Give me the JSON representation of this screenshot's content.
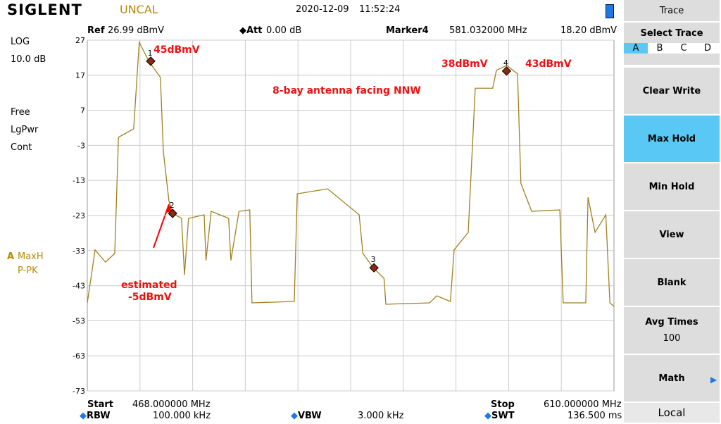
{
  "header": {
    "brand": "SIGLENT",
    "status": "UNCAL",
    "date": "2020-12-09",
    "time": "11:52:24"
  },
  "info": {
    "ref_label": "Ref",
    "ref_value": "26.99 dBmV",
    "att_label": "Att",
    "att_value": "0.00 dB",
    "marker_label": "Marker4",
    "marker_freq": "581.032000 MHz",
    "marker_level": "18.20 dBmV"
  },
  "left_panel": {
    "scale": "LOG",
    "div": "10.0 dB",
    "free": "Free",
    "detector": "LgPwr",
    "sweep": "Cont",
    "trace": "A",
    "trace_mode": "MaxH",
    "trace_det": "P-PK"
  },
  "footer": {
    "start_label": "Start",
    "start_value": "468.000000 MHz",
    "stop_label": "Stop",
    "stop_value": "610.000000 MHz",
    "rbw_label": "RBW",
    "rbw_value": "100.000 kHz",
    "vbw_label": "VBW",
    "vbw_value": "3.000 kHz",
    "swt_label": "SWT",
    "swt_value": "136.500 ms"
  },
  "menu": {
    "title": "Trace",
    "select": "Select Trace",
    "traces": [
      "A",
      "B",
      "C",
      "D"
    ],
    "buttons": [
      "Clear Write",
      "Max Hold",
      "Min Hold",
      "View",
      "Blank"
    ],
    "avg_label": "Avg Times",
    "avg_value": "100",
    "math": "Math",
    "local": "Local"
  },
  "chart_data": {
    "type": "line",
    "xlim": [
      468,
      610
    ],
    "ylim": [
      -73,
      27
    ],
    "yticks": [
      27,
      17,
      7,
      -3,
      -13,
      -23,
      -33,
      -43,
      -53,
      -63,
      -73
    ],
    "grid": true,
    "x": [
      468,
      470.1,
      472.9,
      475.4,
      476.4,
      480.5,
      482.0,
      484.7,
      487.7,
      488.5,
      490.0,
      491.0,
      493.4,
      494.2,
      495.3,
      499.5,
      500.0,
      501.4,
      506.1,
      506.7,
      508.9,
      511.8,
      512.4,
      523.8,
      524.6,
      532.8,
      541.3,
      542.3,
      545.1,
      548.0,
      548.5,
      560.3,
      562.2,
      565.9,
      566.9,
      570.7,
      572.6,
      577.3,
      578.3,
      581.1,
      584.0,
      584.9,
      587.8,
      595.4,
      596.3,
      602.4,
      603.0,
      604.9,
      607.8,
      608.9,
      610
    ],
    "series": [
      {
        "name": "MaxH",
        "color": "#a08020",
        "values": [
          -47.9,
          -32.8,
          -36.3,
          -33.8,
          -0.7,
          1.7,
          26.4,
          20.8,
          16.4,
          -4.7,
          -18.8,
          -22.4,
          -23.8,
          -39.9,
          -23.8,
          -22.8,
          -35.8,
          -21.8,
          -23.8,
          -35.8,
          -21.8,
          -21.4,
          -47.9,
          -47.5,
          -16.8,
          -15.4,
          -22.8,
          -33.8,
          -37.9,
          -40.9,
          -48.3,
          -47.9,
          -45.9,
          -47.5,
          -32.8,
          -27.8,
          13.3,
          13.3,
          18.4,
          19.8,
          17.4,
          -13.8,
          -21.8,
          -21.4,
          -47.9,
          -47.9,
          -17.8,
          -27.8,
          -22.8,
          -47.9,
          -48.9
        ]
      }
    ],
    "markers": {
      "labels": [
        "1",
        "2",
        "3",
        "4"
      ],
      "x": [
        485.1,
        491.0,
        545.3,
        581.03
      ],
      "values": [
        21.0,
        -22.4,
        -37.9,
        18.2
      ]
    },
    "annotations": [
      "45dBmV",
      "38dBmV",
      "43dBmV",
      "8-bay antenna facing NNW",
      "estimated",
      "-5dBmV"
    ]
  }
}
